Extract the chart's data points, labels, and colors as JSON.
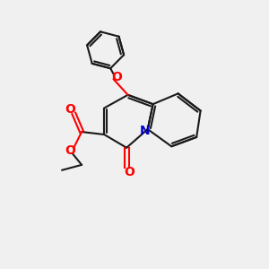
{
  "background_color": "#f0f0f0",
  "bond_color": "#1a1a1a",
  "oxygen_color": "#ff0000",
  "nitrogen_color": "#0000cc",
  "line_width": 1.5,
  "figsize": [
    3.0,
    3.0
  ],
  "dpi": 100,
  "xlim": [
    0,
    10
  ],
  "ylim": [
    0,
    10
  ]
}
